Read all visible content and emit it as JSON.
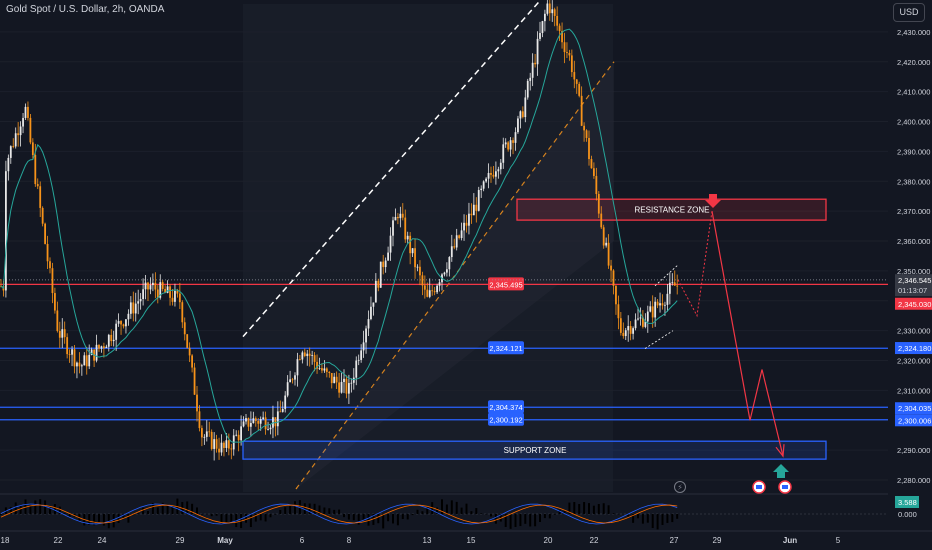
{
  "header": {
    "title": "Gold Spot / U.S. Dollar, 2h, OANDA"
  },
  "currency_button": "USD",
  "colors": {
    "background": "#131722",
    "up": "#e8e8e8",
    "down": "#f7931a",
    "ma": "#26a69a",
    "support": "#2962ff",
    "resistance": "#f23645",
    "channel_upper": "#ffffff",
    "channel_lower": "#f7931a"
  },
  "chart_data": {
    "type": "candlestick",
    "ylim": [
      2276,
      2440
    ],
    "y_ticks": [
      2280,
      2290,
      2300,
      2310,
      2320,
      2330,
      2340,
      2350,
      2360,
      2370,
      2380,
      2390,
      2400,
      2410,
      2420,
      2430
    ],
    "x_tick_labels": [
      "18",
      "22",
      "24",
      "29",
      "May",
      "6",
      "8",
      "13",
      "15",
      "20",
      "22",
      "27",
      "29",
      "Jun",
      "5"
    ],
    "waypoints": [
      [
        "Apr 18",
        2385
      ],
      [
        "Apr 19",
        2405
      ],
      [
        "Apr 22",
        2330
      ],
      [
        "Apr 23",
        2318
      ],
      [
        "Apr 24",
        2325
      ],
      [
        "Apr 26",
        2345
      ],
      [
        "Apr 29",
        2340
      ],
      [
        "Apr 30",
        2295
      ],
      [
        "May 1",
        2290
      ],
      [
        "May 2",
        2300
      ],
      [
        "May 3",
        2300
      ],
      [
        "May 6",
        2325
      ],
      [
        "May 7",
        2315
      ],
      [
        "May 8",
        2310
      ],
      [
        "May 9",
        2340
      ],
      [
        "May 10",
        2370
      ],
      [
        "May 13",
        2340
      ],
      [
        "May 14",
        2355
      ],
      [
        "May 16",
        2385
      ],
      [
        "May 17",
        2400
      ],
      [
        "May 20",
        2440
      ],
      [
        "May 21",
        2420
      ],
      [
        "May 22",
        2380
      ],
      [
        "May 23",
        2330
      ],
      [
        "May 24",
        2335
      ],
      [
        "May 27",
        2345
      ]
    ],
    "moving_average": "trailing, following price",
    "horizontal_levels": [
      {
        "price": 2345.495,
        "label": "2,345.495",
        "color": "#f23645"
      },
      {
        "price": 2324.121,
        "label": "2,324.121",
        "color": "#2962ff"
      },
      {
        "price": 2304.374,
        "label": "2,304.374",
        "color": "#2962ff"
      },
      {
        "price": 2300.192,
        "label": "2,300.192",
        "color": "#2962ff"
      }
    ],
    "zones": [
      {
        "name": "RESISTANCE ZONE",
        "from": 2367,
        "to": 2374,
        "color": "#f23645"
      },
      {
        "name": "SUPPORT ZONE",
        "from": 2287,
        "to": 2293,
        "color": "#2962ff"
      }
    ],
    "price_axis_labels": [
      {
        "text": "2,346.545",
        "price": 2346.545,
        "style": "current"
      },
      {
        "text": "01:13:07",
        "price": 2346.545,
        "style": "countdown"
      },
      {
        "text": "2,345.030",
        "price": 2345.03,
        "style": "red"
      },
      {
        "text": "2,324.180",
        "price": 2324.18,
        "style": "blue"
      },
      {
        "text": "2,304.035",
        "price": 2304.035,
        "style": "blue"
      },
      {
        "text": "2,300.006",
        "price": 2300.006,
        "style": "blue"
      }
    ],
    "projection": [
      2335,
      2370,
      2325,
      2300,
      2315,
      2288
    ],
    "oscillator": {
      "current": "3.588",
      "zero": "0.000"
    }
  }
}
